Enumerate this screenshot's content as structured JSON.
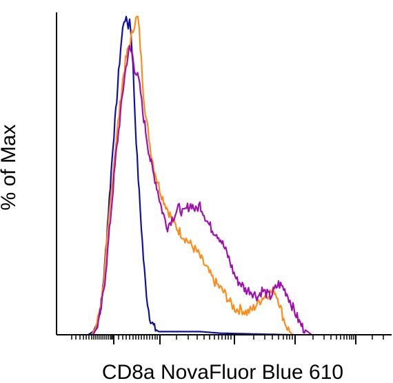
{
  "chart_data": {
    "type": "line",
    "title": "",
    "xlabel": "CD8a NovaFluor Blue 610",
    "ylabel": "% of Max",
    "x_scale": "biexponential",
    "ylim": [
      0,
      100
    ],
    "grid": false,
    "legend": "none",
    "series": [
      {
        "color": "#1010a0",
        "values": [
          [
            128,
            0
          ],
          [
            135,
            1
          ],
          [
            140,
            3
          ],
          [
            144,
            6
          ],
          [
            148,
            12
          ],
          [
            152,
            22
          ],
          [
            156,
            35
          ],
          [
            160,
            47
          ],
          [
            164,
            60
          ],
          [
            168,
            70
          ],
          [
            172,
            82
          ],
          [
            175,
            90
          ],
          [
            178,
            96
          ],
          [
            180,
            99
          ],
          [
            183,
            100
          ],
          [
            186,
            97
          ],
          [
            188,
            99
          ],
          [
            190,
            95
          ],
          [
            193,
            84
          ],
          [
            196,
            68
          ],
          [
            199,
            55
          ],
          [
            202,
            44
          ],
          [
            205,
            34
          ],
          [
            208,
            24
          ],
          [
            211,
            16
          ],
          [
            214,
            10
          ],
          [
            217,
            6
          ],
          [
            220,
            4
          ],
          [
            224,
            2
          ],
          [
            230,
            1
          ],
          [
            240,
            1
          ],
          [
            255,
            1
          ],
          [
            270,
            1
          ],
          [
            290,
            1
          ],
          [
            320,
            0.5
          ],
          [
            360,
            0.3
          ],
          [
            420,
            0
          ]
        ]
      },
      {
        "color": "#ff8c1a",
        "values": [
          [
            133,
            0
          ],
          [
            138,
            2
          ],
          [
            142,
            5
          ],
          [
            146,
            10
          ],
          [
            150,
            16
          ],
          [
            154,
            26
          ],
          [
            158,
            36
          ],
          [
            162,
            46
          ],
          [
            166,
            56
          ],
          [
            170,
            64
          ],
          [
            174,
            72
          ],
          [
            178,
            80
          ],
          [
            182,
            86
          ],
          [
            186,
            90
          ],
          [
            190,
            93
          ],
          [
            194,
            97
          ],
          [
            197,
            99
          ],
          [
            200,
            100
          ],
          [
            202,
            95
          ],
          [
            205,
            86
          ],
          [
            208,
            76
          ],
          [
            212,
            68
          ],
          [
            216,
            62
          ],
          [
            220,
            56
          ],
          [
            225,
            51
          ],
          [
            230,
            47
          ],
          [
            236,
            43
          ],
          [
            242,
            40
          ],
          [
            248,
            37
          ],
          [
            255,
            34
          ],
          [
            262,
            32
          ],
          [
            270,
            30
          ],
          [
            278,
            28
          ],
          [
            286,
            26
          ],
          [
            294,
            23
          ],
          [
            302,
            20
          ],
          [
            310,
            17
          ],
          [
            318,
            15
          ],
          [
            326,
            13
          ],
          [
            334,
            10
          ],
          [
            342,
            8
          ],
          [
            350,
            8
          ],
          [
            358,
            7
          ],
          [
            366,
            8
          ],
          [
            374,
            10
          ],
          [
            382,
            12
          ],
          [
            390,
            13
          ],
          [
            398,
            14
          ],
          [
            404,
            11
          ],
          [
            410,
            6
          ],
          [
            415,
            3
          ],
          [
            420,
            1
          ],
          [
            425,
            0
          ]
        ]
      },
      {
        "color": "#a010b0",
        "values": [
          [
            135,
            0
          ],
          [
            140,
            2
          ],
          [
            144,
            5
          ],
          [
            148,
            10
          ],
          [
            152,
            17
          ],
          [
            156,
            26
          ],
          [
            160,
            36
          ],
          [
            164,
            46
          ],
          [
            168,
            56
          ],
          [
            172,
            64
          ],
          [
            176,
            72
          ],
          [
            180,
            80
          ],
          [
            184,
            86
          ],
          [
            188,
            90
          ],
          [
            192,
            88
          ],
          [
            195,
            84
          ],
          [
            198,
            82
          ],
          [
            201,
            80
          ],
          [
            204,
            76
          ],
          [
            207,
            70
          ],
          [
            210,
            66
          ],
          [
            214,
            60
          ],
          [
            218,
            55
          ],
          [
            222,
            51
          ],
          [
            226,
            48
          ],
          [
            230,
            44
          ],
          [
            234,
            40
          ],
          [
            238,
            37
          ],
          [
            243,
            34
          ],
          [
            248,
            36
          ],
          [
            254,
            38
          ],
          [
            260,
            40
          ],
          [
            266,
            38
          ],
          [
            272,
            40
          ],
          [
            278,
            41
          ],
          [
            284,
            39
          ],
          [
            290,
            41
          ],
          [
            296,
            38
          ],
          [
            302,
            35
          ],
          [
            308,
            33
          ],
          [
            314,
            32
          ],
          [
            320,
            30
          ],
          [
            326,
            27
          ],
          [
            332,
            24
          ],
          [
            338,
            20
          ],
          [
            344,
            17
          ],
          [
            350,
            16
          ],
          [
            356,
            14
          ],
          [
            362,
            14
          ],
          [
            368,
            13
          ],
          [
            374,
            12
          ],
          [
            380,
            14
          ],
          [
            386,
            13
          ],
          [
            392,
            12
          ],
          [
            398,
            14
          ],
          [
            404,
            16
          ],
          [
            410,
            15
          ],
          [
            416,
            13
          ],
          [
            422,
            10
          ],
          [
            428,
            7
          ],
          [
            434,
            4
          ],
          [
            440,
            2
          ],
          [
            446,
            1
          ],
          [
            452,
            0
          ]
        ]
      }
    ]
  }
}
